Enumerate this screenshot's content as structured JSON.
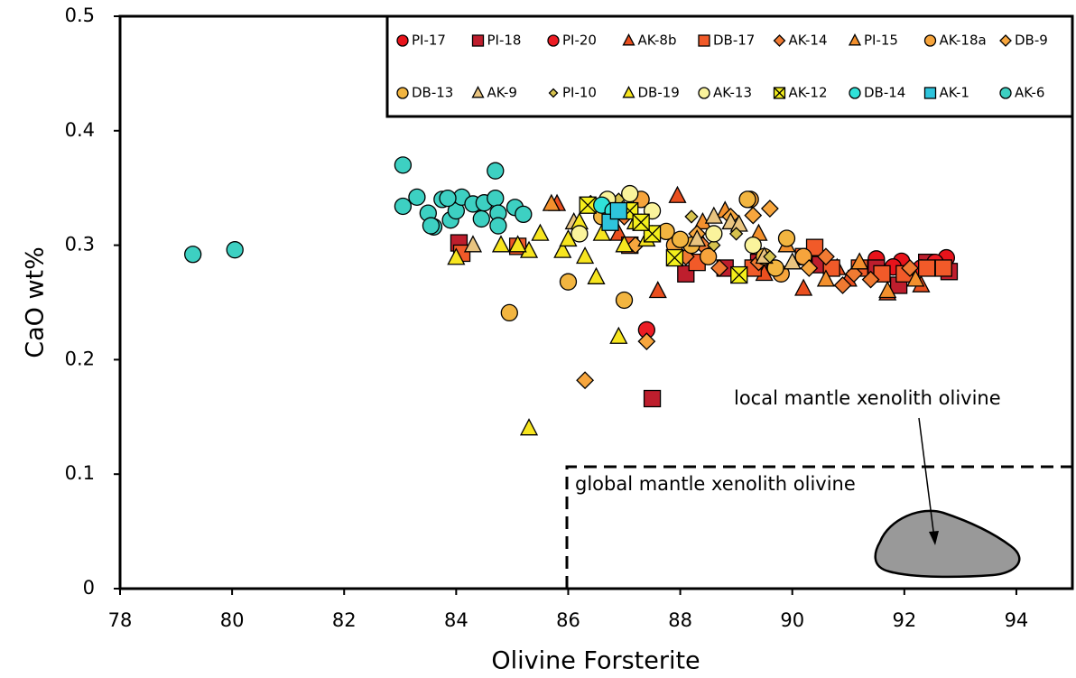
{
  "chart_data": {
    "type": "scatter",
    "xlabel": "Olivine Forsterite",
    "ylabel": "CaO wt%",
    "xlim": [
      78,
      95
    ],
    "ylim": [
      0,
      0.5
    ],
    "xticks": [
      78,
      80,
      82,
      84,
      86,
      88,
      90,
      92,
      94
    ],
    "yticks": [
      0,
      0.1,
      0.2,
      0.3,
      0.4,
      0.5
    ],
    "annotations": [
      "local mantle xenolith olivine",
      "global mantle xenolith olivine"
    ],
    "series": [
      {
        "name": "PI-17",
        "color": "#e8131b",
        "marker": "circle",
        "x": [
          91.5,
          91.95,
          92.6,
          92.75,
          91.8
        ],
        "y": [
          0.288,
          0.286,
          0.282,
          0.289,
          0.281
        ]
      },
      {
        "name": "PI-18",
        "color": "#be1e2d",
        "marker": "square",
        "x": [
          84.05,
          87.5,
          88.1,
          88.8,
          89.4,
          90.5,
          91.5,
          91.9,
          92.4,
          92.8
        ],
        "y": [
          0.302,
          0.166,
          0.275,
          0.28,
          0.285,
          0.283,
          0.28,
          0.265,
          0.285,
          0.277
        ]
      },
      {
        "name": "PI-20",
        "color": "#ec1c24",
        "marker": "circle",
        "x": [
          87.4,
          92.55,
          92.3
        ],
        "y": [
          0.226,
          0.285,
          0.28
        ]
      },
      {
        "name": "AK-8b",
        "color": "#ea4f1f",
        "marker": "triangle",
        "x": [
          85.8,
          86.9,
          87.6,
          87.95,
          88.3,
          89.5,
          90.2,
          91.0,
          91.7,
          92.3,
          90.8
        ],
        "y": [
          0.336,
          0.31,
          0.26,
          0.343,
          0.31,
          0.275,
          0.262,
          0.27,
          0.258,
          0.265,
          0.28
        ]
      },
      {
        "name": "DB-17",
        "color": "#f15a29",
        "marker": "square",
        "x": [
          84.1,
          85.1,
          87.1,
          88.3,
          89.3,
          90.2,
          90.4,
          90.7,
          91.2,
          91.6,
          92.0,
          92.4,
          92.7
        ],
        "y": [
          0.293,
          0.299,
          0.3,
          0.285,
          0.28,
          0.29,
          0.298,
          0.28,
          0.28,
          0.275,
          0.275,
          0.28,
          0.28
        ]
      },
      {
        "name": "AK-14",
        "color": "#f07a32",
        "marker": "diamond",
        "x": [
          86.7,
          87.0,
          87.3,
          87.5,
          88.1,
          88.4,
          88.7,
          89.4,
          90.6,
          91.1,
          91.4,
          90.9,
          92.1
        ],
        "y": [
          0.335,
          0.325,
          0.32,
          0.31,
          0.29,
          0.3,
          0.28,
          0.285,
          0.29,
          0.275,
          0.27,
          0.265,
          0.28
        ]
      },
      {
        "name": "PI-15",
        "color": "#f3902d",
        "marker": "triangle",
        "x": [
          85.7,
          87.0,
          88.4,
          88.8,
          89.9,
          90.6,
          91.2,
          91.7,
          92.2,
          89.4
        ],
        "y": [
          0.336,
          0.33,
          0.32,
          0.33,
          0.3,
          0.27,
          0.285,
          0.26,
          0.27,
          0.31
        ]
      },
      {
        "name": "AK-18a",
        "color": "#f6a43c",
        "marker": "circle",
        "x": [
          86.9,
          87.3,
          87.9,
          89.25,
          89.8,
          88.5,
          90.2
        ],
        "y": [
          0.33,
          0.34,
          0.3,
          0.34,
          0.275,
          0.29,
          0.29
        ]
      },
      {
        "name": "DB-9",
        "color": "#f7a63e",
        "marker": "diamond",
        "x": [
          86.3,
          87.4,
          87.2,
          88.3,
          88.9,
          89.6,
          89.3,
          90.3
        ],
        "y": [
          0.182,
          0.216,
          0.3,
          0.31,
          0.325,
          0.332,
          0.326,
          0.28
        ]
      },
      {
        "name": "DB-13",
        "color": "#f2b540",
        "marker": "circle",
        "x": [
          84.95,
          86.0,
          86.6,
          87.0,
          87.75,
          88.2,
          89.2,
          89.5,
          89.9,
          89.7,
          88.0
        ],
        "y": [
          0.241,
          0.268,
          0.325,
          0.252,
          0.312,
          0.3,
          0.34,
          0.29,
          0.306,
          0.28,
          0.305
        ]
      },
      {
        "name": "AK-9",
        "color": "#e9c480",
        "marker": "triangle",
        "x": [
          84.3,
          86.1,
          88.6,
          88.9,
          89.05,
          88.3,
          89.5,
          90.0
        ],
        "y": [
          0.3,
          0.32,
          0.325,
          0.32,
          0.318,
          0.305,
          0.29,
          0.285
        ]
      },
      {
        "name": "PI-10",
        "color": "#d6c24e",
        "marker": "diamond-small",
        "x": [
          86.4,
          86.9,
          87.5,
          88.2,
          89.0,
          89.6,
          88.6
        ],
        "y": [
          0.338,
          0.34,
          0.33,
          0.325,
          0.31,
          0.29,
          0.3
        ]
      },
      {
        "name": "DB-19",
        "color": "#f7e51f",
        "marker": "triangle",
        "x": [
          84.0,
          84.8,
          85.3,
          85.3,
          85.5,
          85.9,
          86.0,
          86.3,
          86.5,
          86.6,
          86.9,
          87.0,
          87.2,
          87.4,
          85.1,
          86.2
        ],
        "y": [
          0.289,
          0.3,
          0.295,
          0.14,
          0.31,
          0.295,
          0.305,
          0.29,
          0.272,
          0.31,
          0.22,
          0.3,
          0.32,
          0.305,
          0.3,
          0.32
        ]
      },
      {
        "name": "AK-13",
        "color": "#faf39c",
        "marker": "circle",
        "x": [
          87.1,
          86.7,
          87.5,
          88.6,
          89.3,
          86.2
        ],
        "y": [
          0.345,
          0.34,
          0.33,
          0.31,
          0.3,
          0.31
        ]
      },
      {
        "name": "AK-12",
        "color": "#f4ef1c",
        "marker": "square-x",
        "x": [
          86.35,
          87.1,
          87.5,
          87.9,
          89.05,
          87.3
        ],
        "y": [
          0.335,
          0.33,
          0.31,
          0.289,
          0.274,
          0.32
        ]
      },
      {
        "name": "DB-14",
        "color": "#2fe2d9",
        "marker": "circle",
        "x": [
          86.6,
          86.8
        ],
        "y": [
          0.335,
          0.33
        ]
      },
      {
        "name": "AK-1",
        "color": "#2ec4dc",
        "marker": "square",
        "x": [
          86.75,
          86.9
        ],
        "y": [
          0.32,
          0.33
        ]
      },
      {
        "name": "AK-6",
        "color": "#3dd0c2",
        "marker": "circle",
        "x": [
          79.3,
          80.05,
          83.05,
          83.05,
          83.3,
          83.5,
          83.6,
          83.75,
          83.9,
          84.0,
          84.1,
          84.3,
          84.45,
          84.5,
          84.7,
          84.7,
          84.75,
          84.75,
          85.05,
          85.2,
          83.55,
          83.85
        ],
        "y": [
          0.292,
          0.296,
          0.37,
          0.334,
          0.342,
          0.328,
          0.316,
          0.34,
          0.322,
          0.33,
          0.342,
          0.336,
          0.323,
          0.337,
          0.341,
          0.365,
          0.328,
          0.317,
          0.333,
          0.327,
          0.317,
          0.341
        ]
      }
    ]
  }
}
